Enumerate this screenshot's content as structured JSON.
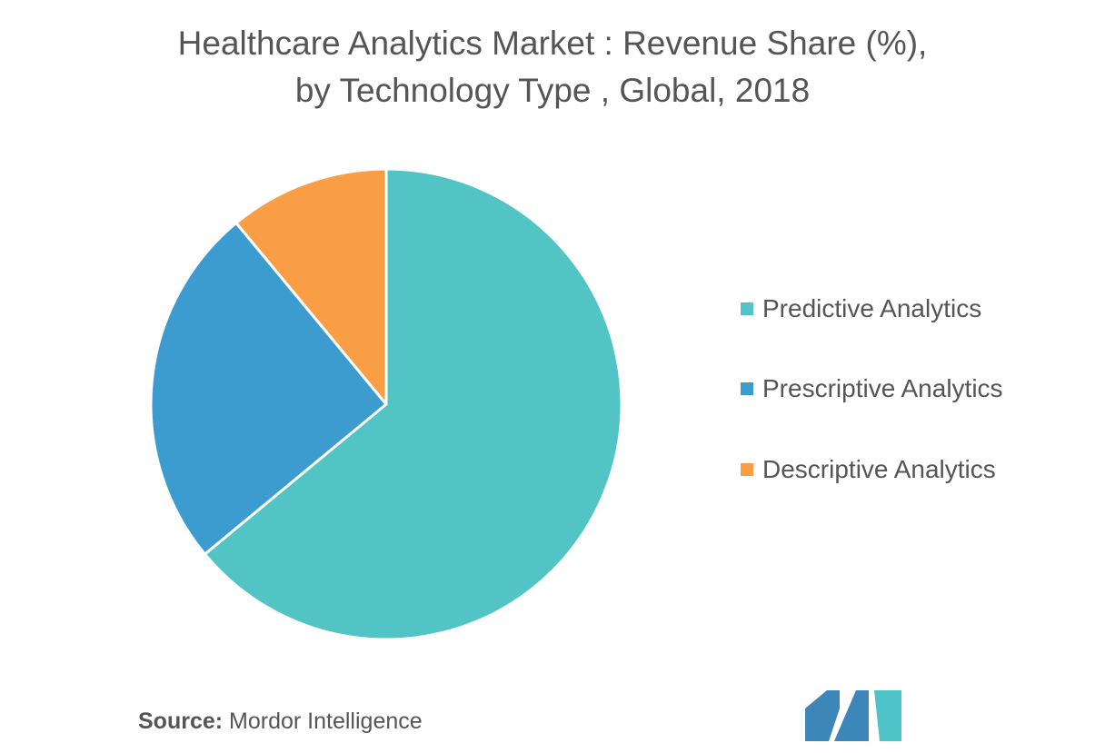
{
  "chart_data": {
    "type": "pie",
    "title_lines": [
      "Healthcare Analytics Market : Revenue Share (%),",
      "by Technology Type , Global, 2018"
    ],
    "slices": [
      {
        "label": "Predictive Analytics",
        "value": 64,
        "color": "#52c4c6"
      },
      {
        "label": "Prescriptive Analytics",
        "value": 25,
        "color": "#3c9ccf"
      },
      {
        "label": "Descriptive Analytics",
        "value": 11,
        "color": "#fa9e46"
      }
    ],
    "start_angle": "12 o'clock",
    "direction": "clockwise",
    "legend_placement": "right"
  },
  "source": {
    "prefix": "Source:",
    "name": "Mordor Intelligence"
  },
  "logo": {
    "name": "mordor-intelligence-logo",
    "colors": [
      "#3c86b8",
      "#4fc4c8"
    ]
  }
}
